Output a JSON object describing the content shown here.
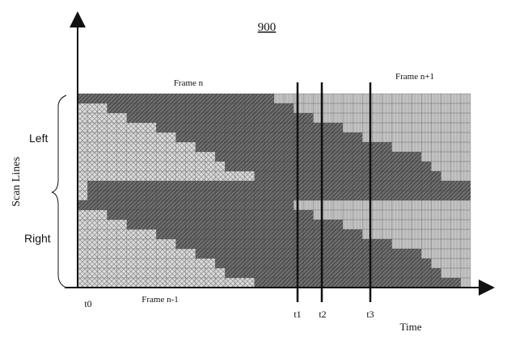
{
  "figure": {
    "number": "900",
    "y_axis_label": "Scan Lines",
    "x_axis_label": "Time",
    "region_top_label": "Left",
    "region_bottom_label": "Right",
    "frame_n_label": "Frame n",
    "frame_next_label": "Frame n+1",
    "frame_prev_label": "Frame n-1",
    "time_markers": [
      "t0",
      "t1",
      "t2",
      "t3"
    ]
  },
  "grid": {
    "rows": 20,
    "cols": 40,
    "frame_n_end_col": [
      20,
      19,
      18,
      16,
      14,
      12,
      10,
      7,
      5,
      1,
      39,
      20,
      19,
      18,
      16,
      14,
      12,
      10,
      7,
      5
    ],
    "frame_n_start_col": [
      0,
      3,
      5,
      8,
      10,
      12,
      14,
      15,
      18,
      1,
      1,
      0,
      3,
      5,
      8,
      10,
      12,
      14,
      15,
      18
    ],
    "frame_next_start_col": [
      20,
      22,
      24,
      27,
      29,
      32,
      35,
      36,
      37,
      40,
      40,
      22,
      24,
      27,
      29,
      32,
      35,
      36,
      37,
      39
    ]
  },
  "colors": {
    "frame_prev": "#d9d9d9",
    "frame_n": "#6f6f6f",
    "frame_next": "#c4c4c4",
    "grid_line": "#3a3a3a",
    "axis": "#111111"
  }
}
